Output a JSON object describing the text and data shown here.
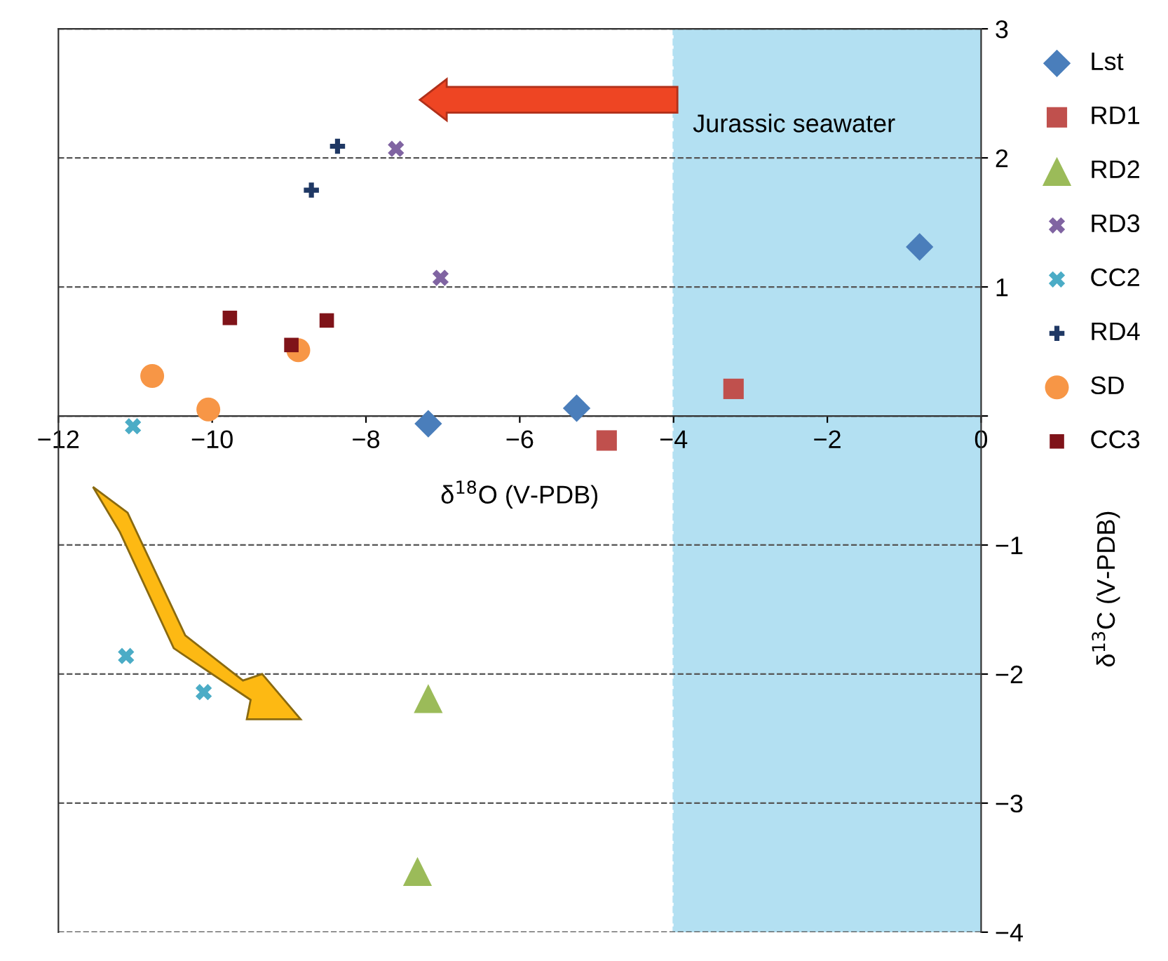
{
  "chart_data": {
    "type": "scatter",
    "xlabel": "δ$^{18}$O (V-PDB)",
    "ylabel": "δ$^{13}$C (V-PDB)",
    "xlim": [
      -12,
      0
    ],
    "xticks": [
      -12,
      -10,
      -8,
      -6,
      -4,
      -2,
      0
    ],
    "ylim": [
      -4,
      3
    ],
    "yticks": [
      -4,
      -3,
      -2,
      -1,
      {
        "value": 0,
        "label": null
      },
      1,
      2,
      3
    ],
    "grid": "y",
    "legend": "right",
    "bands": [
      {
        "axis": "x",
        "from": -4,
        "to": 0,
        "label": "Jurassic seawater",
        "color": "#b3e0f2"
      }
    ],
    "series": [
      {
        "name": "Lst",
        "color": "#4a7ebb",
        "marker": "diamond",
        "x": [
          -7.19,
          -5.26,
          -0.8
        ],
        "values": [
          -0.06,
          0.06,
          1.31
        ]
      },
      {
        "name": "RD1",
        "color": "#c0504d",
        "marker": "square",
        "x": [
          -4.87,
          -3.22
        ],
        "values": [
          -0.19,
          0.21
        ]
      },
      {
        "name": "RD2",
        "color": "#9bbb59",
        "marker": "triangle",
        "x": [
          -7.19,
          -7.33
        ],
        "values": [
          -2.19,
          -3.53
        ]
      },
      {
        "name": "RD3",
        "color": "#8064a2",
        "marker": "cross",
        "x": [
          -7.61,
          -7.03
        ],
        "values": [
          2.07,
          1.07
        ]
      },
      {
        "name": "CC2",
        "color": "#4bacc6",
        "marker": "cross",
        "x": [
          -11.03,
          -11.12,
          -10.11
        ],
        "values": [
          -0.08,
          -1.86,
          -2.14
        ]
      },
      {
        "name": "RD4",
        "color": "#1f3864",
        "marker": "plus",
        "x": [
          -8.37,
          -8.71
        ],
        "values": [
          2.09,
          1.75
        ]
      },
      {
        "name": "SD",
        "color": "#f79646",
        "marker": "circle",
        "x": [
          -10.78,
          -10.05,
          -8.88
        ],
        "values": [
          0.31,
          0.05,
          0.51
        ]
      },
      {
        "name": "CC3",
        "color": "#7f1319",
        "marker": "square",
        "x": [
          -9.77,
          -8.97,
          -8.51
        ],
        "values": [
          0.76,
          0.55,
          0.74
        ]
      }
    ]
  }
}
